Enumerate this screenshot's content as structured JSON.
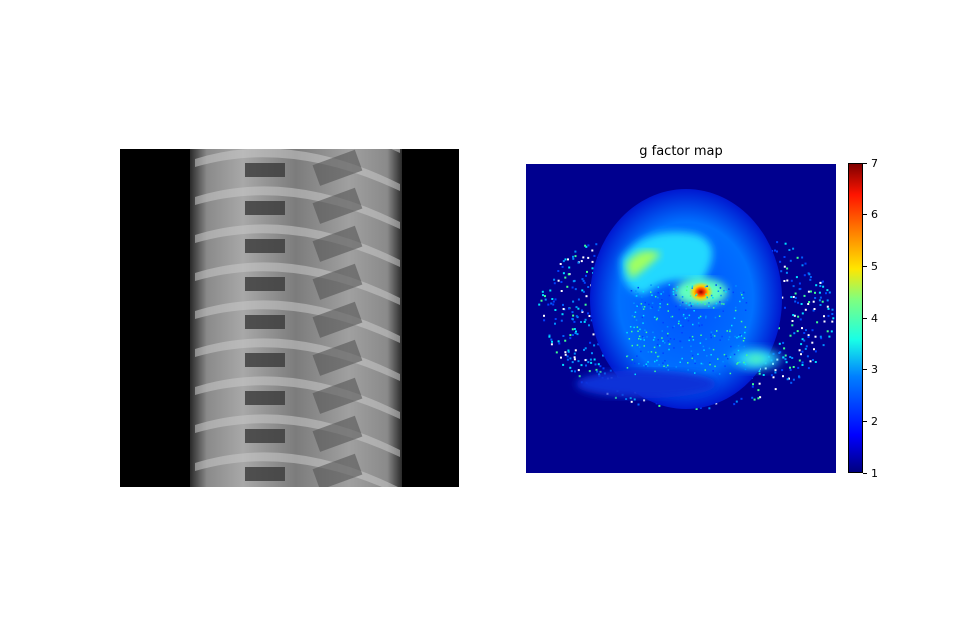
{
  "chart_data": [
    {
      "type": "image",
      "title": "",
      "description_role": "grayscale x-ray style aliased image",
      "colormap": "gray",
      "axes_visible": false
    },
    {
      "type": "heatmap",
      "title": "g factor map",
      "colormap": "jet",
      "axes_visible": false,
      "colorbar": {
        "min": 1,
        "max": 7,
        "ticks": [
          "1",
          "2",
          "3",
          "4",
          "5",
          "6",
          "7"
        ]
      }
    }
  ]
}
